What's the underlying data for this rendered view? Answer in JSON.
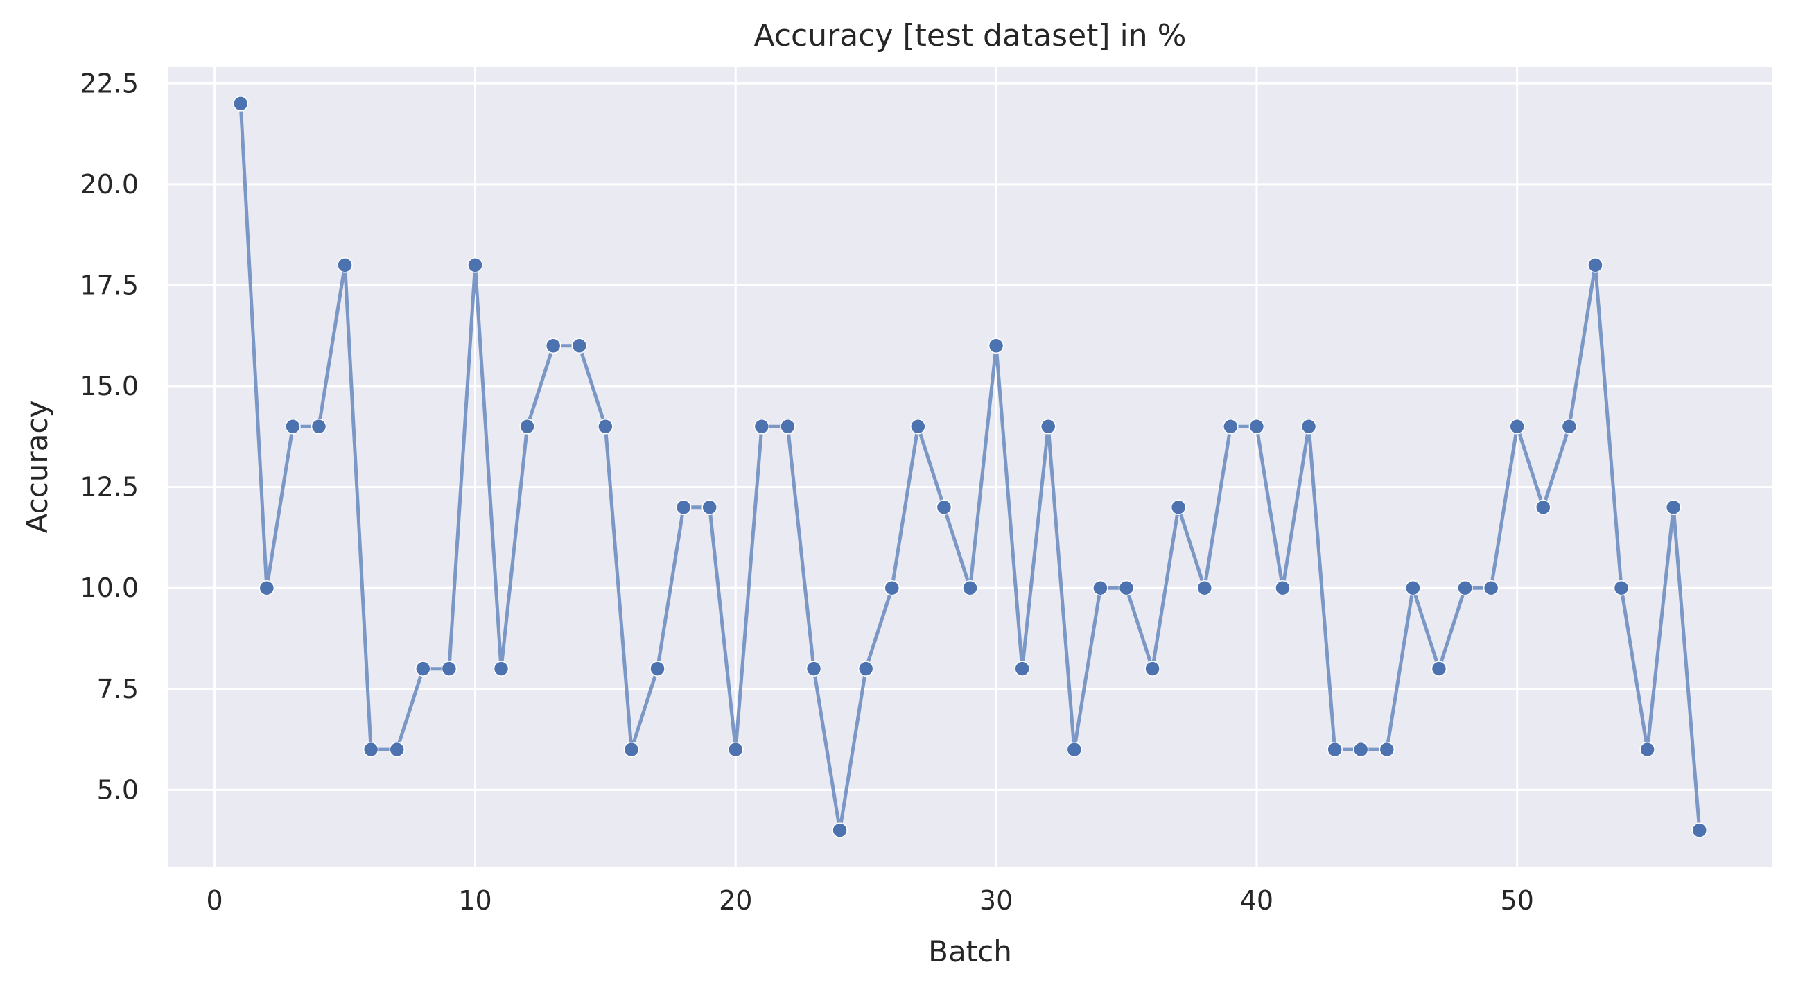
{
  "chart_data": {
    "type": "line",
    "title": "Accuracy [test dataset] in %",
    "xlabel": "Batch",
    "ylabel": "Accuracy",
    "xlim": [
      -1.8,
      59.8
    ],
    "ylim": [
      3.1,
      22.9
    ],
    "xticks": [
      0,
      10,
      20,
      30,
      40,
      50
    ],
    "xtick_labels": [
      "0",
      "10",
      "20",
      "30",
      "40",
      "50"
    ],
    "yticks": [
      5.0,
      7.5,
      10.0,
      12.5,
      15.0,
      17.5,
      20.0,
      22.5
    ],
    "ytick_labels": [
      "5.0",
      "7.5",
      "10.0",
      "12.5",
      "15.0",
      "17.5",
      "20.0",
      "22.5"
    ],
    "grid": true,
    "legend": "none",
    "colors": {
      "background": "#eaeaf2",
      "grid": "#ffffff",
      "line": "#7b97c6",
      "marker": "#4c72b0",
      "text": "#262626"
    },
    "series": [
      {
        "x": [
          1,
          2,
          3,
          4,
          5,
          6,
          7,
          8,
          9,
          10,
          11,
          12,
          13,
          14,
          15,
          16,
          17,
          18,
          19,
          20,
          21,
          22,
          23,
          24,
          25,
          26,
          27,
          28,
          29,
          30,
          31,
          32,
          33,
          34,
          35,
          36,
          37,
          38,
          39,
          40,
          41,
          42,
          43,
          44,
          45,
          46,
          47,
          48,
          49,
          50,
          51,
          52,
          53,
          54,
          55,
          56,
          57
        ],
        "values": [
          22,
          10,
          14,
          14,
          18,
          6,
          6,
          8,
          8,
          18,
          8,
          14,
          16,
          16,
          14,
          6,
          8,
          12,
          12,
          6,
          14,
          14,
          8,
          4,
          8,
          10,
          14,
          12,
          10,
          16,
          8,
          14,
          6,
          10,
          10,
          8,
          12,
          10,
          14,
          14,
          10,
          14,
          6,
          6,
          6,
          10,
          8,
          10,
          10,
          14,
          12,
          14,
          18,
          10,
          6,
          12,
          4
        ]
      }
    ]
  }
}
